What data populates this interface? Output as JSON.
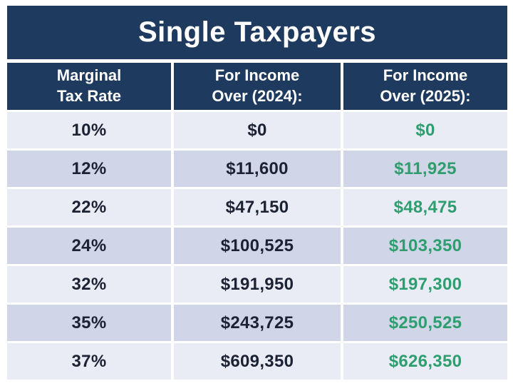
{
  "title": "Single Taxpayers",
  "header": {
    "columns": [
      {
        "line1": "Marginal",
        "line2": "Tax Rate"
      },
      {
        "line1": "For Income",
        "line2": "Over (2024):"
      },
      {
        "line1": "For Income",
        "line2": "Over (2025):"
      }
    ]
  },
  "chart_data": {
    "type": "table",
    "title": "Single Taxpayers",
    "columns": [
      "Marginal Tax Rate",
      "For Income Over (2024):",
      "For Income Over (2025):"
    ],
    "rows": [
      [
        "10%",
        "$0",
        "$0"
      ],
      [
        "12%",
        "$11,600",
        "$11,925"
      ],
      [
        "22%",
        "$47,150",
        "$48,475"
      ],
      [
        "24%",
        "$100,525",
        "$103,350"
      ],
      [
        "32%",
        "$191,950",
        "$197,300"
      ],
      [
        "35%",
        "$243,725",
        "$250,525"
      ],
      [
        "37%",
        "$609,350",
        "$626,350"
      ]
    ],
    "layout_hints": {
      "rows_alternate_shading": true,
      "column_2025_text_color": "green"
    }
  },
  "colors": {
    "navy": "#1e3a5e",
    "row_light": "#eaecf5",
    "row_dark": "#d0d5e7",
    "green": "#2e9e6f",
    "text_dark": "#1b2233",
    "background": "#ffffff"
  }
}
